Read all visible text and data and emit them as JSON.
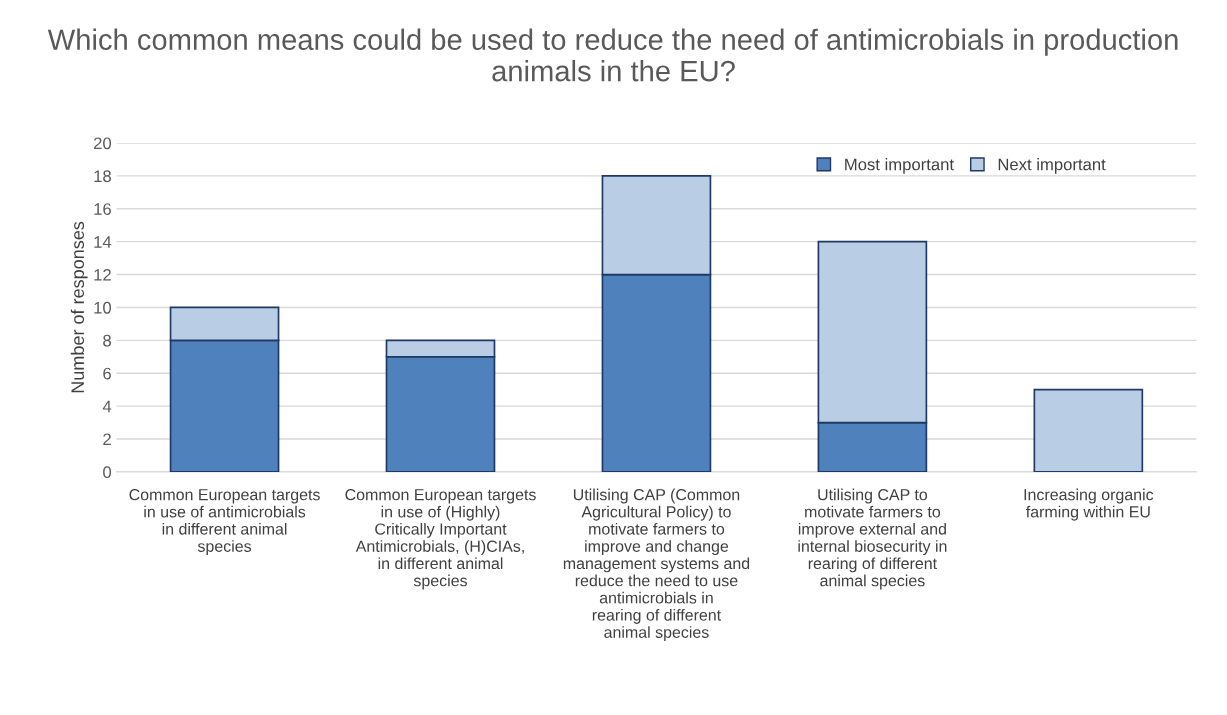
{
  "chart_data": {
    "type": "bar",
    "title": "Which common means could be used to reduce the need of antimicrobials in production animals in the EU?",
    "ylabel": "Number of responses",
    "categories": [
      "Common European targets in use of antimicrobials in different animal species",
      "Common European targets in use of (Highly) Critically Important Antimicrobials, (H)CIAs, in different animal species",
      "Utilising CAP (Common Agricultural Policy) to motivate farmers to improve and change management systems and reduce the need to use antimicrobials in rearing of different animal species",
      "Utilising CAP to motivate farmers to improve external and internal biosecurity in rearing of different animal species",
      "Increasing organic farming within EU"
    ],
    "series": [
      {
        "name": "Most important",
        "color": "#4f81bd",
        "values": [
          8,
          7,
          12,
          3,
          null
        ]
      },
      {
        "name": "Next important",
        "color": "#b9cde5",
        "values": [
          2,
          1,
          6,
          11,
          5
        ]
      }
    ],
    "stacked": true,
    "ylim": [
      0,
      20
    ],
    "yticks": [
      0,
      2,
      4,
      6,
      8,
      10,
      12,
      14,
      16,
      18,
      20
    ],
    "grid": "y",
    "legend": "top right"
  }
}
